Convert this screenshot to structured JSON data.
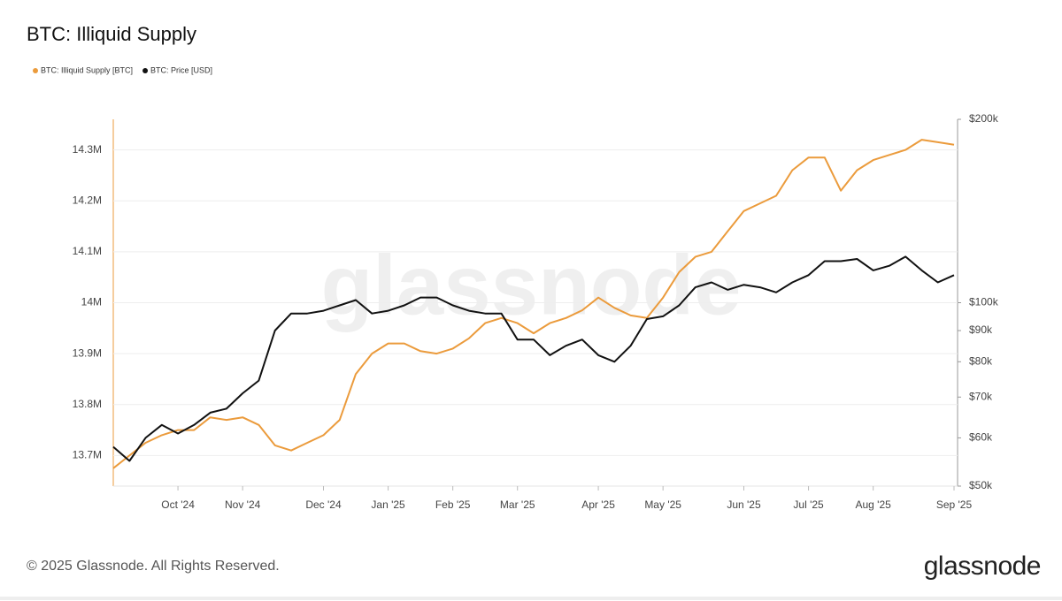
{
  "chart_data": {
    "type": "line",
    "title": "BTC: Illiquid Supply",
    "watermark": "glassnode",
    "categories": [
      null,
      null,
      null,
      null,
      "Oct '24",
      null,
      null,
      null,
      "Nov '24",
      null,
      null,
      null,
      null,
      "Dec '24",
      null,
      null,
      null,
      "Jan '25",
      null,
      null,
      null,
      "Feb '25",
      null,
      null,
      null,
      "Mar '25",
      null,
      null,
      null,
      null,
      "Apr '25",
      null,
      null,
      null,
      "May '25",
      null,
      null,
      null,
      null,
      "Jun '25",
      null,
      null,
      null,
      "Jul '25",
      null,
      null,
      null,
      "Aug '25",
      null,
      null,
      null,
      null,
      "Sep '25"
    ],
    "series": [
      {
        "name": "BTC: Illiquid Supply [BTC]",
        "color": "#eb9b3c",
        "axis": "y",
        "values": [
          13675000,
          13700000,
          13725000,
          13740000,
          13750000,
          13750000,
          13775000,
          13770000,
          13775000,
          13760000,
          13720000,
          13710000,
          13725000,
          13740000,
          13770000,
          13860000,
          13900000,
          13920000,
          13920000,
          13905000,
          13900000,
          13910000,
          13930000,
          13960000,
          13970000,
          13960000,
          13940000,
          13960000,
          13970000,
          13985000,
          14010000,
          13990000,
          13975000,
          13970000,
          14010000,
          14060000,
          14090000,
          14100000,
          14140000,
          14180000,
          14195000,
          14210000,
          14260000,
          14285000,
          14285000,
          14220000,
          14260000,
          14280000,
          14290000,
          14300000,
          14320000,
          14315000,
          14310000
        ]
      },
      {
        "name": "BTC: Price [USD]",
        "color": "#111111",
        "axis": "y2",
        "values": [
          58000,
          55000,
          60000,
          63000,
          61000,
          63000,
          66000,
          67000,
          71000,
          74500,
          90000,
          96000,
          96000,
          97000,
          99000,
          101000,
          96000,
          97000,
          99000,
          102000,
          102000,
          99000,
          97000,
          96000,
          96000,
          87000,
          87000,
          82000,
          85000,
          87000,
          82000,
          80000,
          85000,
          94000,
          95000,
          99000,
          106000,
          108000,
          105000,
          107000,
          106000,
          104000,
          108000,
          111000,
          117000,
          117000,
          118000,
          113000,
          115000,
          119000,
          113000,
          108000,
          111000
        ]
      }
    ],
    "ylim": [
      13640000,
      14360000
    ],
    "yticks": [
      {
        "value": 13700000,
        "label": "13.7M"
      },
      {
        "value": 13800000,
        "label": "13.8M"
      },
      {
        "value": 13900000,
        "label": "13.9M"
      },
      {
        "value": 14000000,
        "label": "14M"
      },
      {
        "value": 14100000,
        "label": "14.1M"
      },
      {
        "value": 14200000,
        "label": "14.2M"
      },
      {
        "value": 14300000,
        "label": "14.3M"
      }
    ],
    "y2lim": [
      50000,
      200000
    ],
    "y2log": true,
    "y2ticks": [
      {
        "value": 50000,
        "label": "$50k"
      },
      {
        "value": 60000,
        "label": "$60k"
      },
      {
        "value": 70000,
        "label": "$70k"
      },
      {
        "value": 80000,
        "label": "$80k"
      },
      {
        "value": 90000,
        "label": "$90k"
      },
      {
        "value": 100000,
        "label": "$100k"
      },
      {
        "value": 200000,
        "label": "$200k"
      }
    ],
    "grid": true,
    "legend": "top-left"
  },
  "footer": {
    "copyright": "© 2025 Glassnode. All Rights Reserved.",
    "logo": "glassnode"
  }
}
